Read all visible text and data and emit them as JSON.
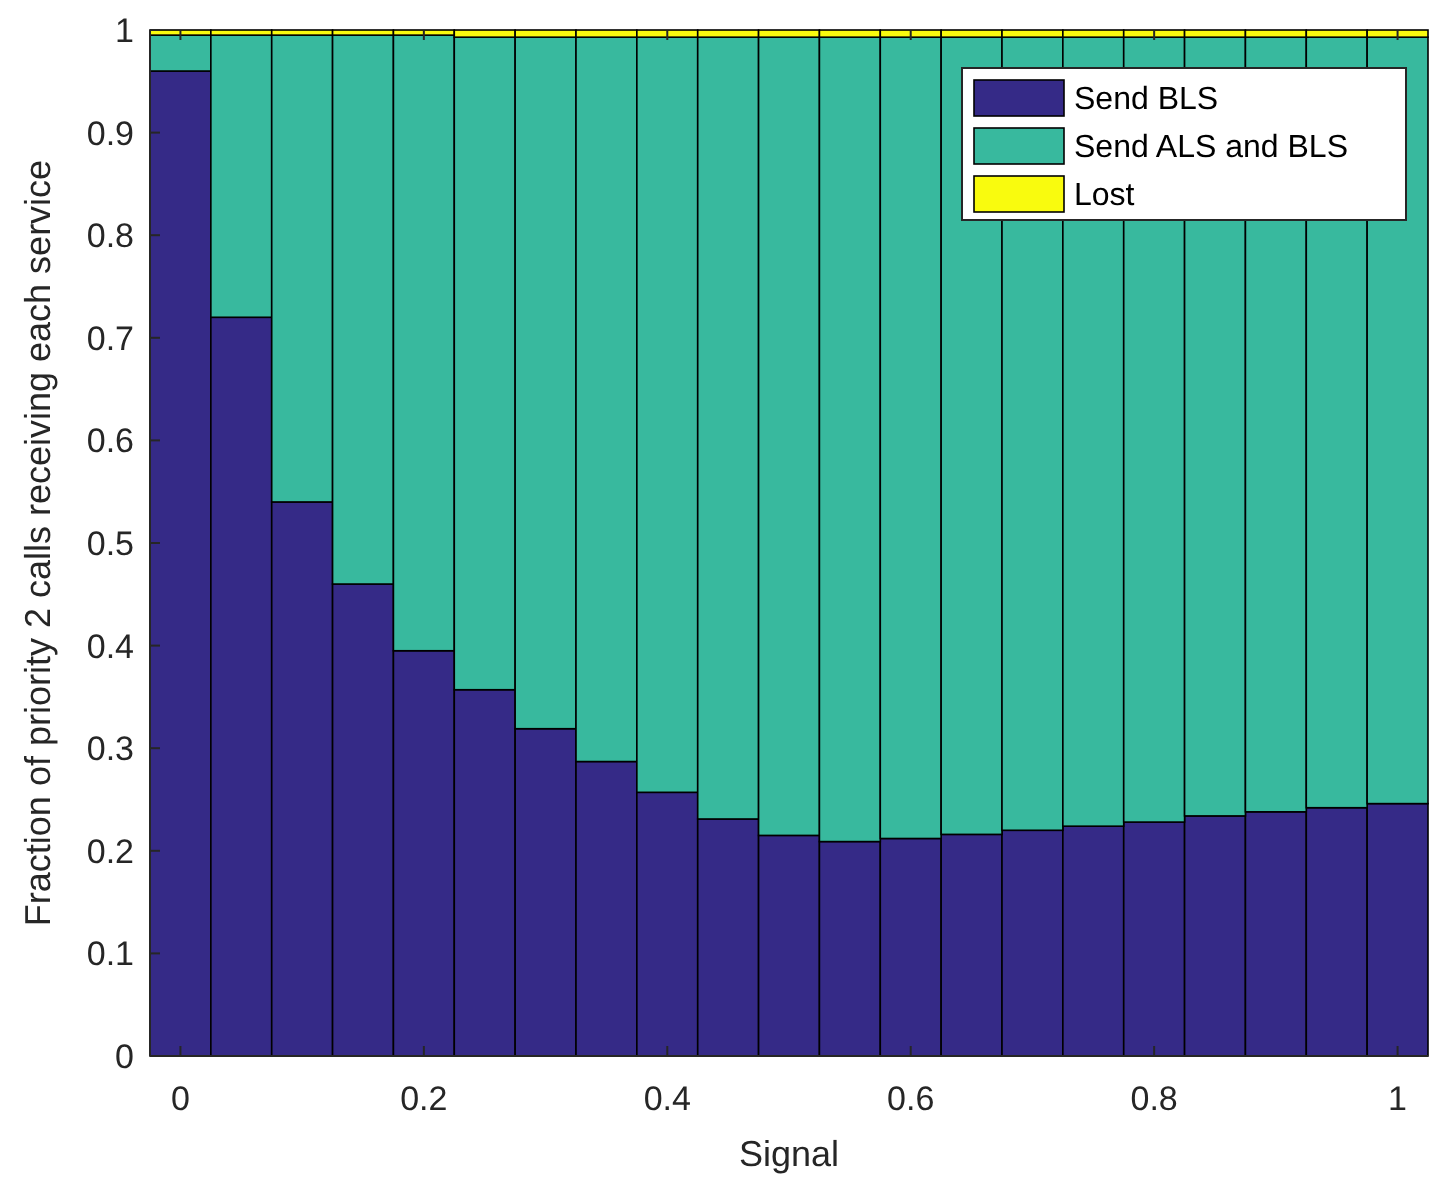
{
  "chart_data": {
    "type": "bar",
    "stacked": true,
    "xlabel": "Signal",
    "ylabel": "Fraction of priority 2 calls receiving each service",
    "x": [
      0,
      0.05,
      0.1,
      0.15,
      0.2,
      0.25,
      0.3,
      0.35,
      0.4,
      0.45,
      0.5,
      0.55,
      0.6,
      0.65,
      0.7,
      0.75,
      0.8,
      0.85,
      0.9,
      0.95,
      1
    ],
    "series": [
      {
        "name": "Send BLS",
        "color": "#352a87",
        "values": [
          0.96,
          0.72,
          0.54,
          0.46,
          0.395,
          0.357,
          0.319,
          0.287,
          0.257,
          0.231,
          0.215,
          0.209,
          0.212,
          0.216,
          0.22,
          0.224,
          0.228,
          0.234,
          0.238,
          0.242,
          0.246
        ]
      },
      {
        "name": "Send ALS and BLS",
        "color": "#38b99e",
        "values": [
          0.035,
          0.275,
          0.455,
          0.535,
          0.6,
          0.636,
          0.674,
          0.706,
          0.736,
          0.762,
          0.778,
          0.784,
          0.781,
          0.777,
          0.773,
          0.769,
          0.765,
          0.759,
          0.755,
          0.751,
          0.747
        ]
      },
      {
        "name": "Lost",
        "color": "#f9fb0e",
        "values": [
          0.005,
          0.005,
          0.005,
          0.005,
          0.005,
          0.007,
          0.007,
          0.007,
          0.007,
          0.007,
          0.007,
          0.007,
          0.007,
          0.007,
          0.007,
          0.007,
          0.007,
          0.007,
          0.007,
          0.007,
          0.007
        ]
      }
    ],
    "xlim": [
      -0.025,
      1.025
    ],
    "xticks": [
      0,
      0.2,
      0.4,
      0.6,
      0.8,
      1
    ],
    "ylim": [
      0,
      1
    ],
    "yticks": [
      0,
      0.1,
      0.2,
      0.3,
      0.4,
      0.5,
      0.6,
      0.7,
      0.8,
      0.9,
      1
    ],
    "legend": "top right",
    "grid": false
  }
}
